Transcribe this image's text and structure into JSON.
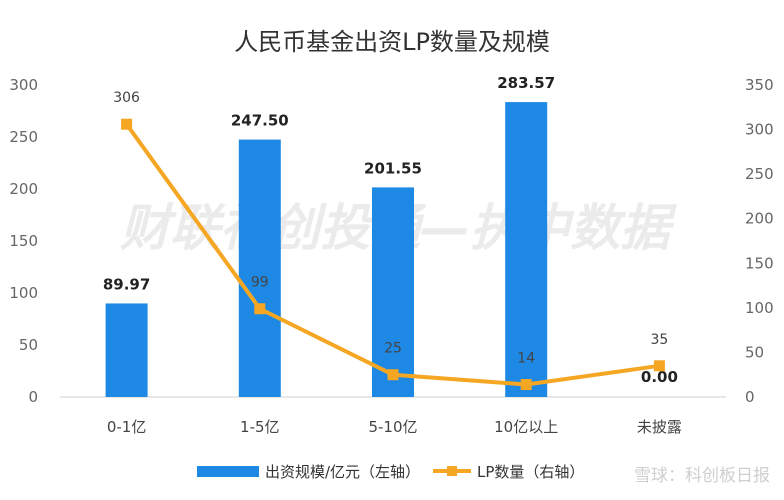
{
  "chart_data": {
    "type": "bar",
    "title": "人民币基金出资LP数量及规模",
    "categories": [
      "0-1亿",
      "1-5亿",
      "5-10亿",
      "10亿以上",
      "未披露"
    ],
    "series": [
      {
        "name": "出资规模/亿元（左轴）",
        "type": "bar",
        "axis": "left",
        "values": [
          89.97,
          247.5,
          201.55,
          283.57,
          0.0
        ],
        "labels": [
          "89.97",
          "247.50",
          "201.55",
          "283.57",
          "0.00"
        ],
        "color": "#1e88e5"
      },
      {
        "name": "LP数量（右轴）",
        "type": "line",
        "axis": "right",
        "values": [
          306,
          99,
          25,
          14,
          35
        ],
        "labels": [
          "306",
          "99",
          "25",
          "14",
          "35"
        ],
        "color": "#f5a623"
      }
    ],
    "left_axis": {
      "range": [
        0,
        300
      ],
      "ticks": [
        "0",
        "50",
        "100",
        "150",
        "200",
        "250",
        "300"
      ]
    },
    "right_axis": {
      "range": [
        0,
        350
      ],
      "ticks": [
        "0",
        "50",
        "100",
        "150",
        "200",
        "250",
        "300",
        "350"
      ]
    },
    "grid": false,
    "legend_position": "bottom"
  },
  "watermark": {
    "text": "财联社创投通—执中数据",
    "source": "雪球：科创板日报"
  }
}
